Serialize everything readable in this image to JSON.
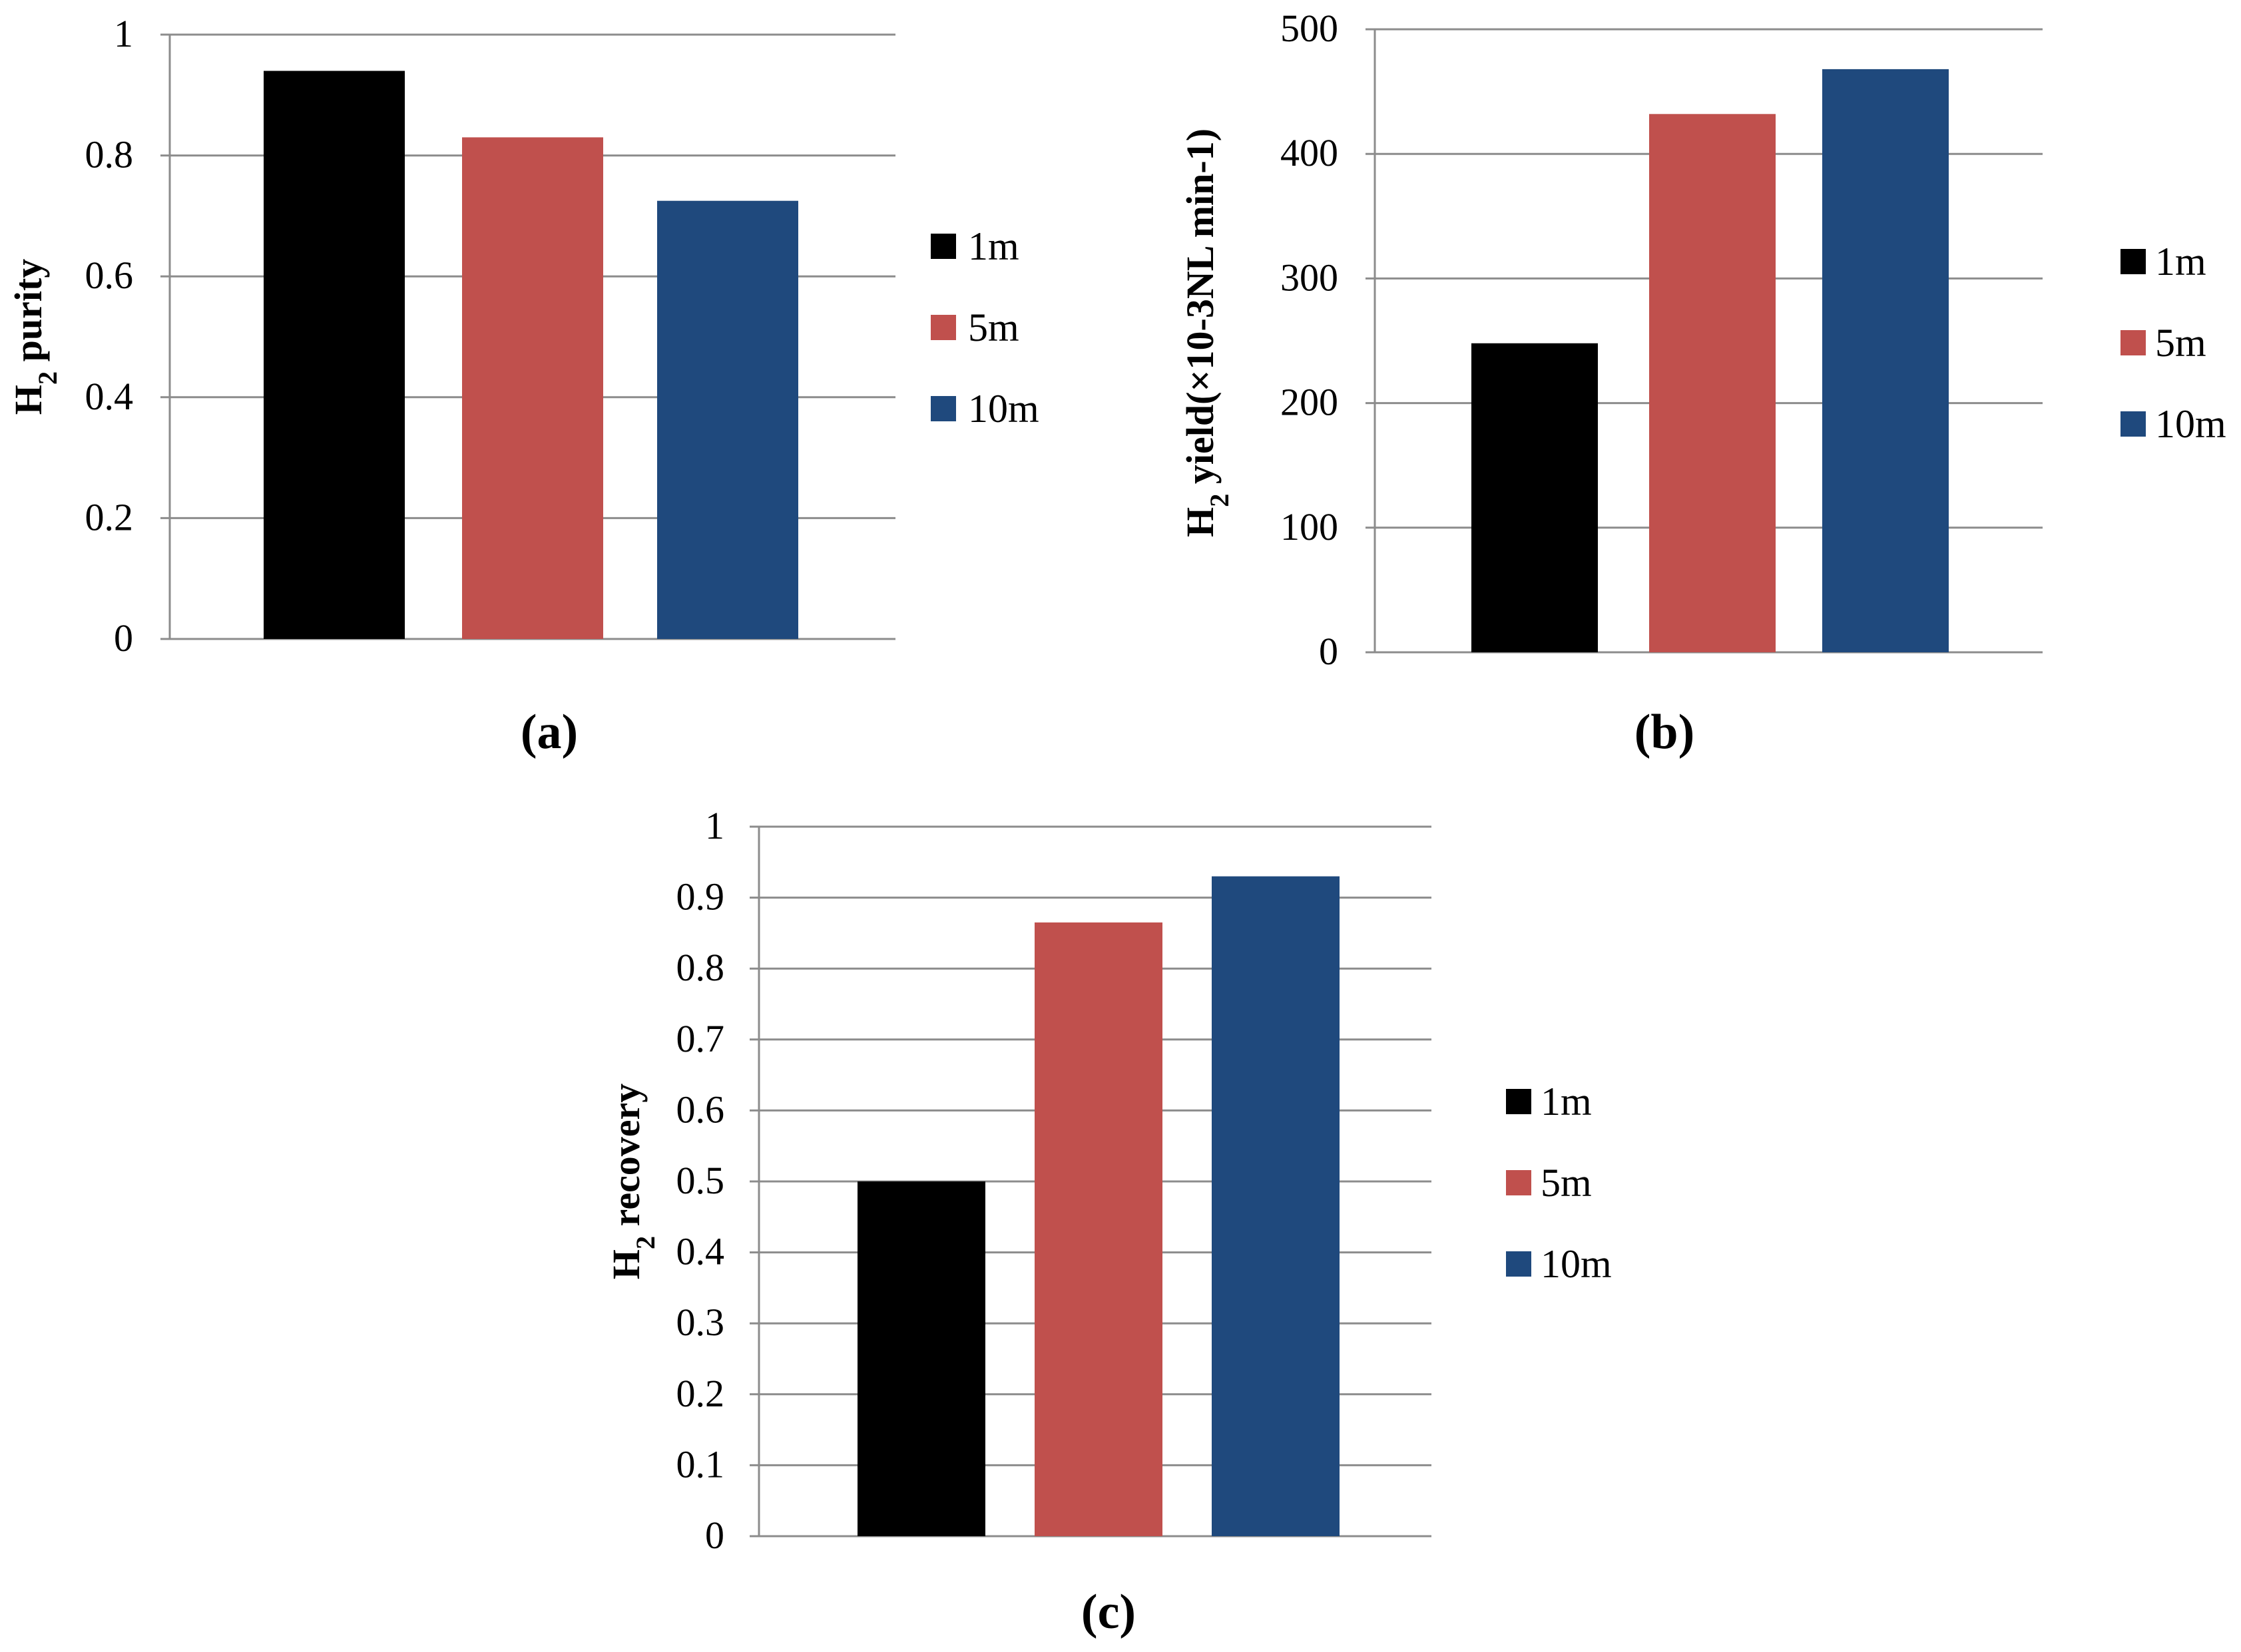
{
  "chart_data": [
    {
      "type": "bar",
      "panel_label": "(a)",
      "ylabel": "H2 purity",
      "ylabel_main": "H",
      "ylabel_sub": "2",
      "ylabel_rest": " purity",
      "ylim": [
        0,
        1
      ],
      "yticks": [
        0,
        0.2,
        0.4,
        0.6,
        0.8,
        1
      ],
      "ytick_labels": [
        "0",
        "0.2",
        "0.4",
        "0.6",
        "0.8",
        "1"
      ],
      "grid": true,
      "legend_position": "right",
      "series": [
        {
          "name": "1m",
          "value": 0.94,
          "color": "#000000"
        },
        {
          "name": "5m",
          "value": 0.83,
          "color": "#c0504d"
        },
        {
          "name": "10m",
          "value": 0.725,
          "color": "#1f497d"
        }
      ]
    },
    {
      "type": "bar",
      "panel_label": "(b)",
      "ylabel": "H2 yield(×10-3NL min-1)",
      "ylabel_main": "H",
      "ylabel_sub": "2",
      "ylabel_rest": " yield(×10-3NL min-1)",
      "ylim": [
        0,
        500
      ],
      "yticks": [
        0,
        100,
        200,
        300,
        400,
        500
      ],
      "ytick_labels": [
        "0",
        "100",
        "200",
        "300",
        "400",
        "500"
      ],
      "grid": true,
      "legend_position": "right",
      "series": [
        {
          "name": "1m",
          "value": 248,
          "color": "#000000"
        },
        {
          "name": "5m",
          "value": 432,
          "color": "#c0504d"
        },
        {
          "name": "10m",
          "value": 468,
          "color": "#1f497d"
        }
      ]
    },
    {
      "type": "bar",
      "panel_label": "(c)",
      "ylabel": "H2 recovery",
      "ylabel_main": "H",
      "ylabel_sub": "2",
      "ylabel_rest": " recovery",
      "ylim": [
        0,
        1
      ],
      "yticks": [
        0,
        0.1,
        0.2,
        0.3,
        0.4,
        0.5,
        0.6,
        0.7,
        0.8,
        0.9,
        1
      ],
      "ytick_labels": [
        "0",
        "0.1",
        "0.2",
        "0.3",
        "0.4",
        "0.5",
        "0.6",
        "0.7",
        "0.8",
        "0.9",
        "1"
      ],
      "grid": true,
      "legend_position": "right",
      "series": [
        {
          "name": "1m",
          "value": 0.5,
          "color": "#000000"
        },
        {
          "name": "5m",
          "value": 0.865,
          "color": "#c0504d"
        },
        {
          "name": "10m",
          "value": 0.93,
          "color": "#1f497d"
        }
      ]
    }
  ]
}
